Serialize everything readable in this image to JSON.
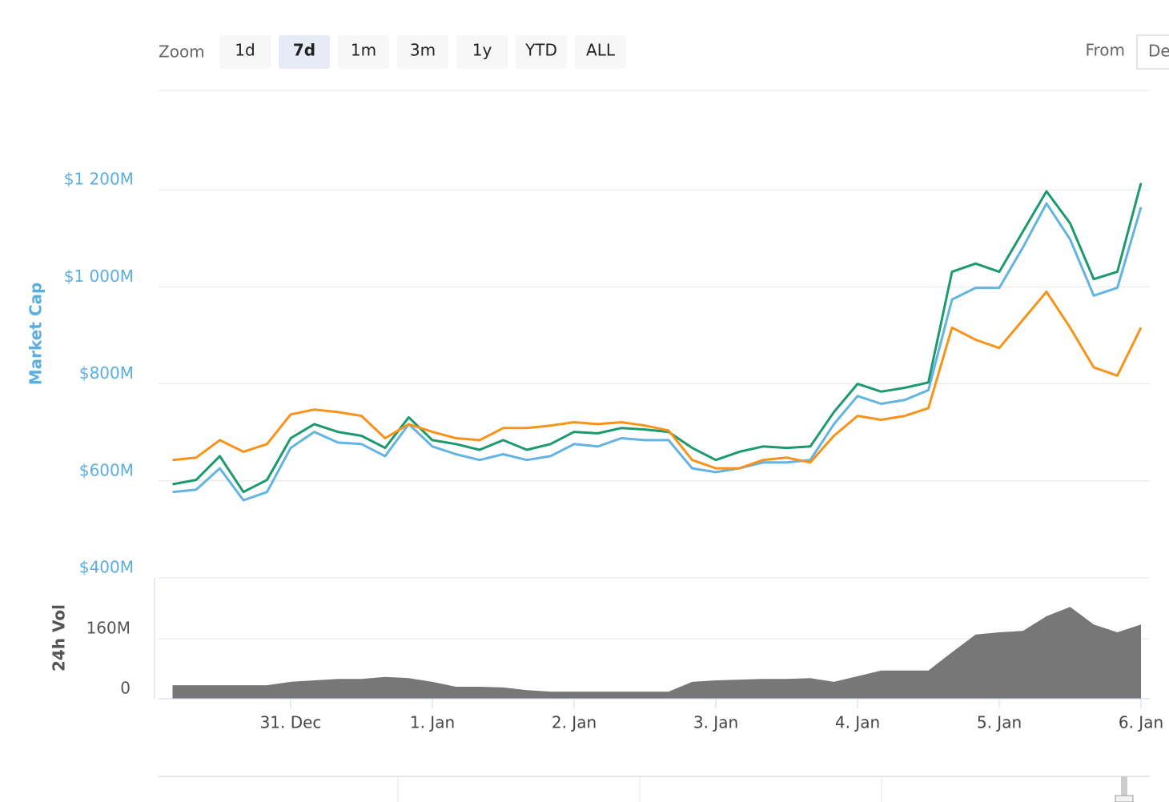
{
  "controls": {
    "zoom_label": "Zoom",
    "zoom_options": [
      "1d",
      "7d",
      "1m",
      "3m",
      "1y",
      "YTD",
      "ALL"
    ],
    "selected_zoom": "7d",
    "from_label": "From",
    "from_value": "De"
  },
  "chart_data": [
    {
      "type": "line",
      "y_label": "Market Cap",
      "grid": true,
      "categories": [
        null,
        null,
        null,
        null,
        null,
        "31. Dec",
        null,
        null,
        null,
        null,
        null,
        "1. Jan",
        null,
        null,
        null,
        null,
        null,
        "2. Jan",
        null,
        null,
        null,
        null,
        null,
        "3. Jan",
        null,
        null,
        null,
        null,
        null,
        "4. Jan",
        null,
        null,
        null,
        null,
        null,
        "5. Jan",
        null,
        null,
        null,
        null,
        null,
        "6. Jan"
      ],
      "ylim": [
        400,
        1405
      ],
      "yticks": [
        {
          "value": 400,
          "label": "$400M"
        },
        {
          "value": 600,
          "label": "$600M"
        },
        {
          "value": 800,
          "label": "$800M"
        },
        {
          "value": 1000,
          "label": "$1 000M"
        },
        {
          "value": 1200,
          "label": "$1 200M"
        }
      ],
      "series": [
        {
          "color": "#63b3e3",
          "values": [
            577,
            582,
            626,
            560,
            577,
            668,
            701,
            679,
            676,
            651,
            717,
            671,
            655,
            643,
            655,
            643,
            651,
            676,
            671,
            688,
            684,
            684,
            626,
            618,
            626,
            638,
            638,
            643,
            717,
            775,
            759,
            767,
            787,
            974,
            998,
            998,
            1081,
            1172,
            1098,
            982,
            998,
            1164
          ]
        },
        {
          "color": "#1c9a6c",
          "values": [
            593,
            602,
            651,
            577,
            602,
            688,
            717,
            701,
            693,
            668,
            731,
            684,
            676,
            664,
            684,
            664,
            676,
            701,
            698,
            709,
            706,
            701,
            668,
            643,
            660,
            671,
            668,
            671,
            742,
            800,
            784,
            792,
            803,
            1031,
            1048,
            1031,
            1114,
            1197,
            1131,
            1016,
            1031,
            1214
          ]
        },
        {
          "color": "#f7931a",
          "values": [
            643,
            648,
            684,
            660,
            676,
            737,
            747,
            742,
            734,
            688,
            717,
            701,
            688,
            684,
            709,
            709,
            714,
            721,
            717,
            721,
            714,
            704,
            643,
            626,
            626,
            643,
            648,
            638,
            693,
            734,
            726,
            734,
            750,
            916,
            891,
            874,
            932,
            990,
            916,
            834,
            817,
            916
          ]
        }
      ]
    },
    {
      "type": "area",
      "y_label": "24h Vol",
      "color": "#777777",
      "grid": true,
      "ylim": [
        0,
        320
      ],
      "yticks": [
        0,
        {
          "value": 160,
          "label": "160M"
        }
      ],
      "values": [
        36,
        36,
        36,
        36,
        36,
        45,
        49,
        53,
        53,
        58,
        55,
        45,
        32,
        32,
        30,
        23,
        19,
        19,
        19,
        19,
        19,
        19,
        45,
        49,
        51,
        53,
        53,
        55,
        45,
        60,
        75,
        75,
        75,
        124,
        171,
        177,
        181,
        220,
        245,
        198,
        177,
        198
      ]
    }
  ]
}
